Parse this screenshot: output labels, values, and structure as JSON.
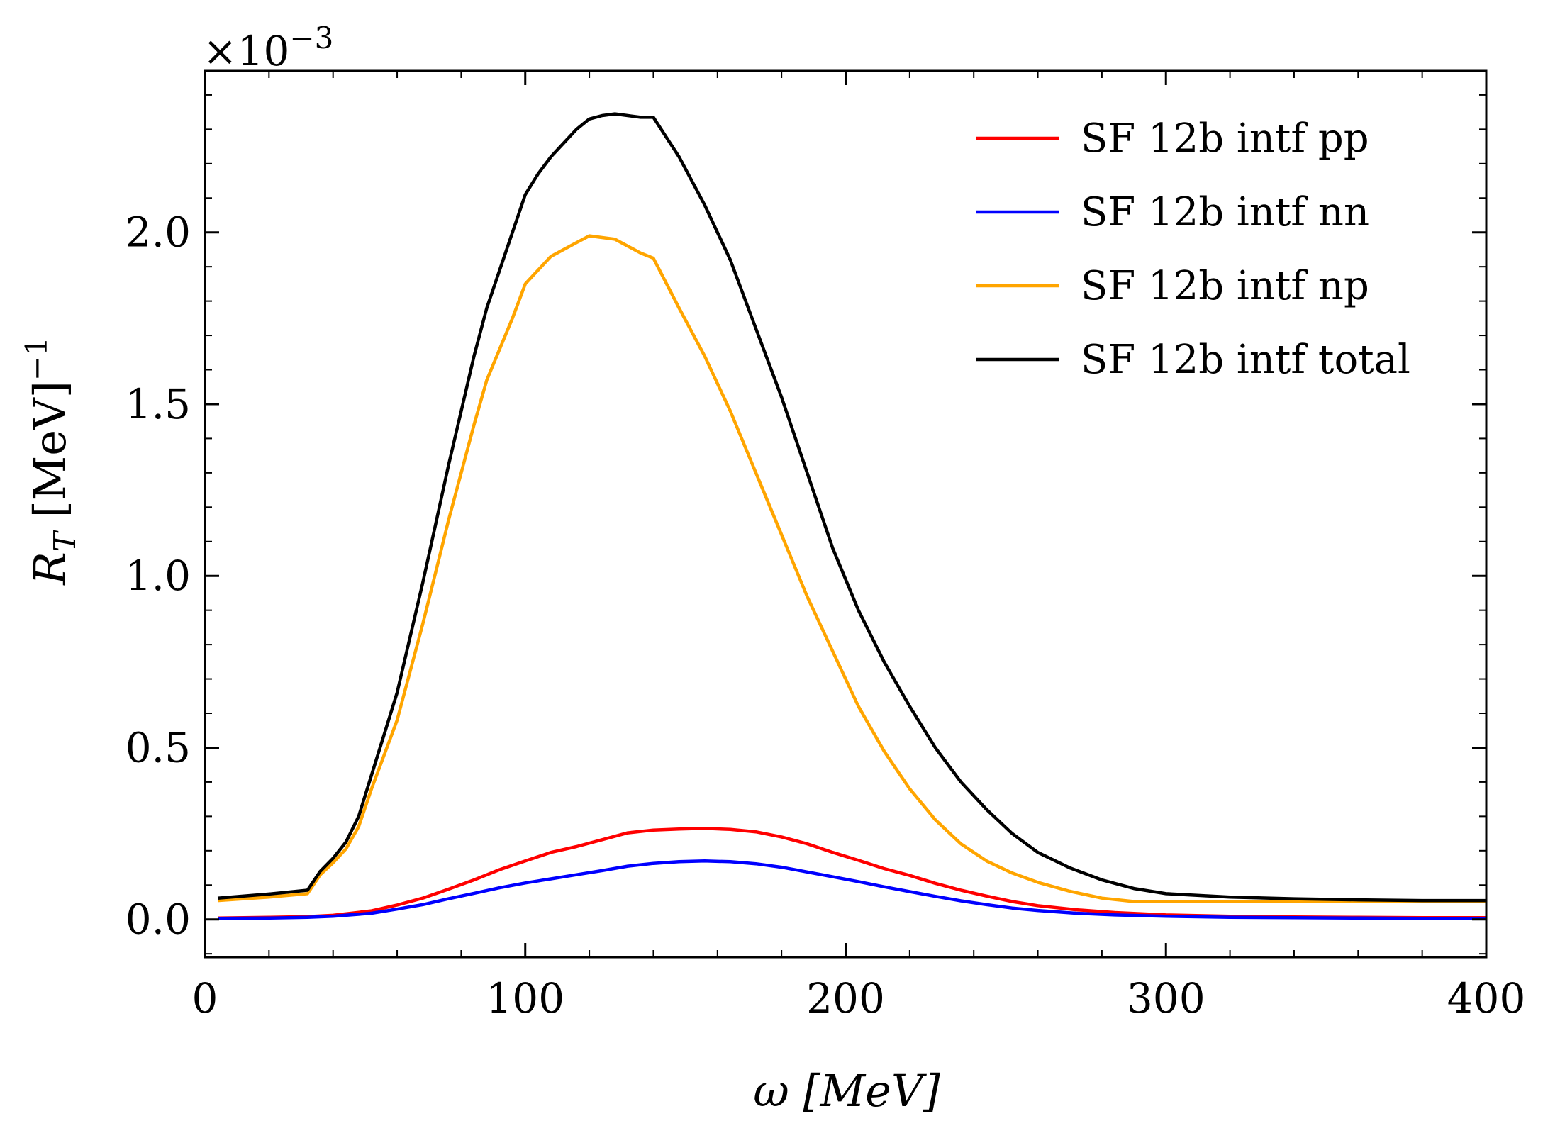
{
  "chart_data": {
    "type": "line",
    "xlabel": "ω [MeV]",
    "ylabel_main": "R",
    "ylabel_sub": "T",
    "ylabel_unit": " [MeV]",
    "ylabel_exp": "−1",
    "y_multiplier_base": "×10",
    "y_multiplier_exp": "−3",
    "xlim": [
      0,
      400
    ],
    "ylim": [
      -0.11,
      2.47
    ],
    "x_ticks": [
      0,
      100,
      200,
      300,
      400
    ],
    "x_tick_labels": [
      "0",
      "100",
      "200",
      "300",
      "400"
    ],
    "y_ticks": [
      0.0,
      0.5,
      1.0,
      1.5,
      2.0
    ],
    "y_tick_labels": [
      "0.0",
      "0.5",
      "1.0",
      "1.5",
      "2.0"
    ],
    "legend_position": "top-right",
    "grid": false,
    "series": [
      {
        "name": "SF 12b intf pp",
        "color": "#ff0000",
        "x": [
          4,
          20,
          32,
          40,
          52,
          60,
          68,
          76,
          84,
          92,
          100,
          108,
          116,
          124,
          132,
          140,
          148,
          156,
          164,
          172,
          180,
          188,
          196,
          204,
          212,
          220,
          228,
          236,
          244,
          252,
          260,
          272,
          284,
          300,
          320,
          340,
          360,
          380,
          400
        ],
        "y": [
          0.004,
          0.006,
          0.008,
          0.012,
          0.025,
          0.042,
          0.062,
          0.088,
          0.115,
          0.145,
          0.17,
          0.195,
          0.212,
          0.232,
          0.252,
          0.26,
          0.263,
          0.265,
          0.262,
          0.255,
          0.24,
          0.22,
          0.195,
          0.172,
          0.148,
          0.128,
          0.105,
          0.085,
          0.068,
          0.052,
          0.04,
          0.028,
          0.02,
          0.013,
          0.009,
          0.007,
          0.006,
          0.005,
          0.005
        ]
      },
      {
        "name": "SF 12b intf nn",
        "color": "#0000ff",
        "x": [
          4,
          20,
          32,
          40,
          52,
          60,
          68,
          76,
          84,
          92,
          100,
          108,
          116,
          124,
          132,
          140,
          148,
          156,
          164,
          172,
          180,
          188,
          196,
          204,
          212,
          220,
          228,
          236,
          244,
          252,
          260,
          272,
          284,
          300,
          320,
          340,
          360,
          380,
          400
        ],
        "y": [
          0.003,
          0.004,
          0.006,
          0.009,
          0.018,
          0.03,
          0.043,
          0.06,
          0.076,
          0.092,
          0.106,
          0.118,
          0.13,
          0.142,
          0.155,
          0.163,
          0.168,
          0.17,
          0.168,
          0.162,
          0.152,
          0.138,
          0.124,
          0.11,
          0.095,
          0.081,
          0.067,
          0.054,
          0.043,
          0.033,
          0.026,
          0.018,
          0.013,
          0.009,
          0.006,
          0.005,
          0.004,
          0.003,
          0.003
        ]
      },
      {
        "name": "SF 12b intf np",
        "color": "#ffa500",
        "x": [
          4,
          20,
          32,
          36,
          40,
          44,
          48,
          52,
          56,
          60,
          64,
          68,
          72,
          76,
          80,
          84,
          88,
          92,
          96,
          100,
          104,
          108,
          112,
          116,
          120,
          124,
          128,
          132,
          136,
          140,
          148,
          156,
          164,
          172,
          180,
          188,
          196,
          204,
          212,
          220,
          228,
          236,
          244,
          252,
          260,
          270,
          280,
          290,
          300,
          320,
          340,
          360,
          380,
          400
        ],
        "y": [
          0.055,
          0.065,
          0.075,
          0.13,
          0.165,
          0.205,
          0.27,
          0.38,
          0.48,
          0.58,
          0.72,
          0.86,
          1.01,
          1.16,
          1.3,
          1.44,
          1.57,
          1.66,
          1.75,
          1.85,
          1.89,
          1.93,
          1.95,
          1.97,
          1.99,
          1.985,
          1.98,
          1.96,
          1.94,
          1.925,
          1.78,
          1.64,
          1.48,
          1.3,
          1.12,
          0.94,
          0.78,
          0.62,
          0.49,
          0.38,
          0.29,
          0.22,
          0.17,
          0.135,
          0.108,
          0.082,
          0.062,
          0.052,
          0.052,
          0.052,
          0.052,
          0.052,
          0.052,
          0.052
        ]
      },
      {
        "name": "SF 12b intf total",
        "color": "#000000",
        "x": [
          4,
          20,
          32,
          36,
          40,
          44,
          48,
          52,
          56,
          60,
          64,
          68,
          72,
          76,
          80,
          84,
          88,
          92,
          96,
          100,
          104,
          108,
          112,
          116,
          120,
          124,
          128,
          132,
          136,
          140,
          148,
          156,
          164,
          172,
          180,
          188,
          196,
          204,
          212,
          220,
          228,
          236,
          244,
          252,
          260,
          270,
          280,
          290,
          300,
          320,
          340,
          360,
          380,
          400
        ],
        "y": [
          0.062,
          0.074,
          0.085,
          0.14,
          0.178,
          0.225,
          0.3,
          0.42,
          0.54,
          0.66,
          0.82,
          0.98,
          1.15,
          1.32,
          1.48,
          1.64,
          1.78,
          1.89,
          2.0,
          2.11,
          2.17,
          2.22,
          2.26,
          2.3,
          2.33,
          2.34,
          2.345,
          2.34,
          2.335,
          2.335,
          2.22,
          2.08,
          1.92,
          1.72,
          1.52,
          1.3,
          1.08,
          0.9,
          0.75,
          0.62,
          0.5,
          0.4,
          0.32,
          0.25,
          0.195,
          0.15,
          0.115,
          0.09,
          0.075,
          0.065,
          0.06,
          0.057,
          0.055,
          0.055
        ]
      }
    ]
  }
}
